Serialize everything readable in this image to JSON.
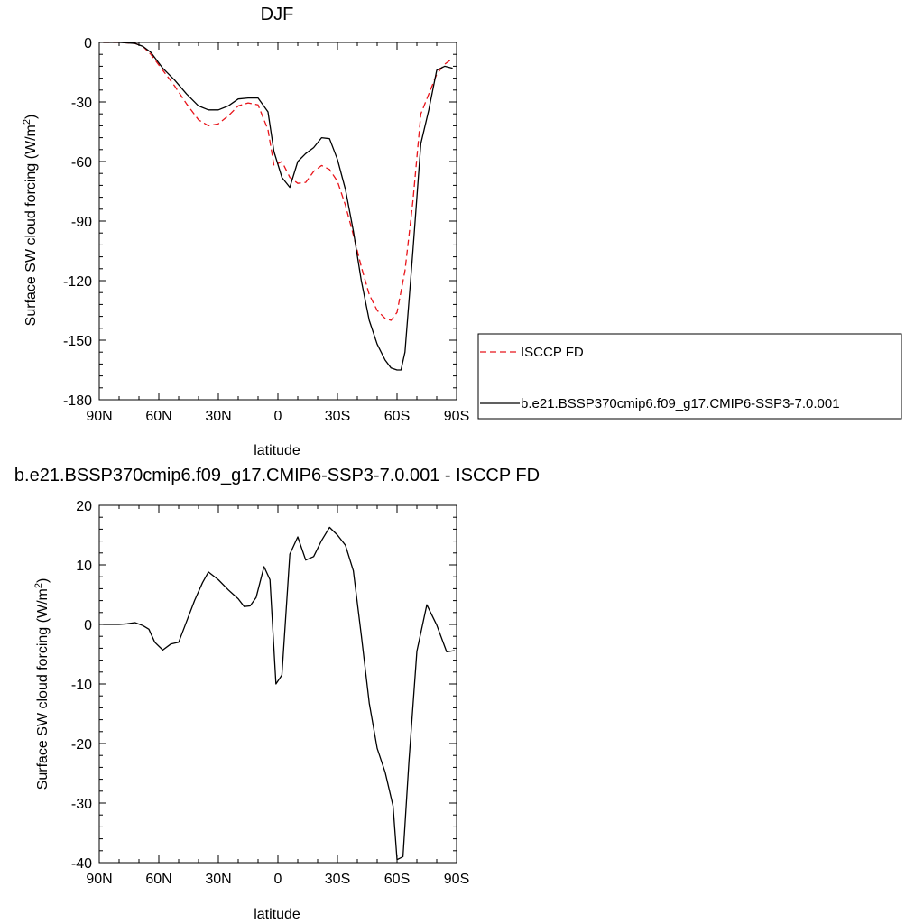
{
  "chart_data": [
    {
      "type": "line",
      "title": "DJF",
      "xlabel": "latitude",
      "ylabel": "Surface SW cloud forcing (W/m",
      "ylabel_sup": "2",
      "ylabel_end": ")",
      "xlim": [
        90,
        -90
      ],
      "ylim": [
        -180,
        0
      ],
      "xticks": [
        90,
        60,
        30,
        0,
        -30,
        -60,
        -90
      ],
      "xtick_labels": [
        "90N",
        "60N",
        "30N",
        "0",
        "30S",
        "60S",
        "90S"
      ],
      "yticks": [
        0,
        -30,
        -60,
        -90,
        -120,
        -150,
        -180
      ],
      "ytick_labels": [
        "0",
        "-30",
        "-60",
        "-90",
        "-120",
        "-150",
        "-180"
      ],
      "legend_position": "right",
      "series": [
        {
          "name": "ISCCP FD",
          "color": "#e8141a",
          "dash": "dashed",
          "x": [
            88,
            80,
            72,
            68,
            64,
            58,
            52,
            46,
            40,
            35,
            30,
            25,
            20,
            15,
            10,
            5,
            2,
            -2,
            -6,
            -10,
            -14,
            -18,
            -22,
            -26,
            -30,
            -34,
            -38,
            -42,
            -46,
            -50,
            -54,
            -57,
            -60,
            -64,
            -68,
            -72,
            -76,
            -80,
            -84,
            -88
          ],
          "y": [
            0,
            0,
            -0.5,
            -2,
            -6,
            -14,
            -22,
            -31,
            -39,
            -42,
            -41,
            -37,
            -32,
            -30.5,
            -31.5,
            -44,
            -62,
            -60,
            -68,
            -71,
            -70.5,
            -65,
            -62,
            -64,
            -70,
            -82,
            -97,
            -113,
            -127,
            -135,
            -139,
            -140,
            -136,
            -115,
            -80,
            -36,
            -26,
            -16,
            -11,
            -8
          ]
        },
        {
          "name": "b.e21.BSSP370cmip6.f09_g17.CMIP6-SSP3-7.0.001",
          "color": "#000000",
          "dash": "solid",
          "x": [
            88,
            80,
            72,
            68,
            64,
            58,
            52,
            46,
            40,
            35,
            30,
            25,
            20,
            15,
            10,
            5,
            2,
            -2,
            -6,
            -10,
            -14,
            -18,
            -22,
            -26,
            -30,
            -34,
            -38,
            -42,
            -46,
            -50,
            -54,
            -57,
            -60,
            -62,
            -64,
            -68,
            -72,
            -76,
            -80,
            -84,
            -88
          ],
          "y": [
            0,
            0,
            -0.5,
            -2,
            -5,
            -13,
            -19,
            -26,
            -32,
            -34,
            -34,
            -32,
            -28.5,
            -28,
            -28,
            -35,
            -55,
            -68,
            -73,
            -60,
            -56,
            -53,
            -48,
            -48.5,
            -59,
            -74,
            -95,
            -120,
            -140,
            -152,
            -160,
            -164,
            -165,
            -165,
            -156,
            -105,
            -51,
            -34,
            -14,
            -12,
            -13
          ]
        }
      ]
    },
    {
      "type": "line",
      "title": "b.e21.BSSP370cmip6.f09_g17.CMIP6-SSP3-7.0.001 - ISCCP FD",
      "xlabel": "latitude",
      "ylabel": "Surface SW cloud forcing (W/m",
      "ylabel_sup": "2",
      "ylabel_end": ")",
      "xlim": [
        90,
        -90
      ],
      "ylim": [
        -40,
        20
      ],
      "xticks": [
        90,
        60,
        30,
        0,
        -30,
        -60,
        -90
      ],
      "xtick_labels": [
        "90N",
        "60N",
        "30N",
        "0",
        "30S",
        "60S",
        "90S"
      ],
      "yticks": [
        20,
        10,
        0,
        -10,
        -20,
        -30,
        -40
      ],
      "ytick_labels": [
        "20",
        "10",
        "0",
        "-10",
        "-20",
        "-30",
        "-40"
      ],
      "series": [
        {
          "color": "#000000",
          "dash": "solid",
          "x": [
            88,
            80,
            76,
            72,
            68,
            65,
            62,
            58,
            54,
            50,
            46,
            42,
            38,
            35,
            30,
            25,
            20,
            17,
            14,
            11,
            7,
            4,
            1,
            -2,
            -6,
            -10,
            -14,
            -18,
            -22,
            -26,
            -30,
            -34,
            -38,
            -42,
            -46,
            -50,
            -54,
            -58,
            -60,
            -63,
            -66,
            -70,
            -75,
            -80,
            -85,
            -89
          ],
          "y": [
            0,
            0,
            0.1,
            0.3,
            -0.2,
            -0.8,
            -3,
            -4.3,
            -3.3,
            -3,
            0.5,
            4,
            7,
            8.8,
            7.5,
            5.8,
            4.3,
            3,
            3.1,
            4.5,
            9.7,
            7.5,
            -10,
            -8.5,
            11.8,
            14.7,
            10.8,
            11.4,
            14.1,
            16.3,
            15,
            13.3,
            9,
            -1.8,
            -13.2,
            -20.8,
            -24.8,
            -30.5,
            -39.5,
            -39,
            -23,
            -4.5,
            3.3,
            -0.1,
            -4.6,
            -4.4
          ]
        }
      ]
    }
  ]
}
